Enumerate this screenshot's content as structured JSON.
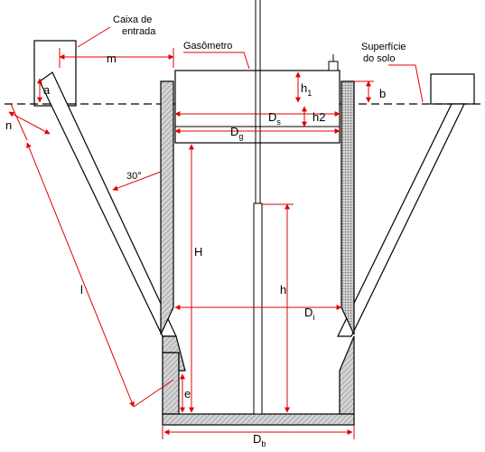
{
  "labels": {
    "caixa_line1": "Caixa de",
    "caixa_line2": "entrada",
    "gasometro": "Gasômetro",
    "superficie_line1": "Superfície",
    "superficie_line2": "do solo",
    "m": "m",
    "a": "a",
    "n": "n",
    "l": "l",
    "angle": "30°",
    "h1_main": "h",
    "h1_sub": "1",
    "b": "b",
    "ds_main": "D",
    "ds_sub": "s",
    "h2": "h2",
    "dg_main": "D",
    "dg_sub": "g",
    "H": "H",
    "h": "h",
    "di_main": "D",
    "di_sub": "i",
    "e": "e",
    "db_main": "D",
    "db_sub": "b"
  },
  "colors": {
    "line": "#000000",
    "dimension": "#e00000",
    "wall_fill": "#c8c8c8",
    "hatch": "#8a8a8a"
  }
}
